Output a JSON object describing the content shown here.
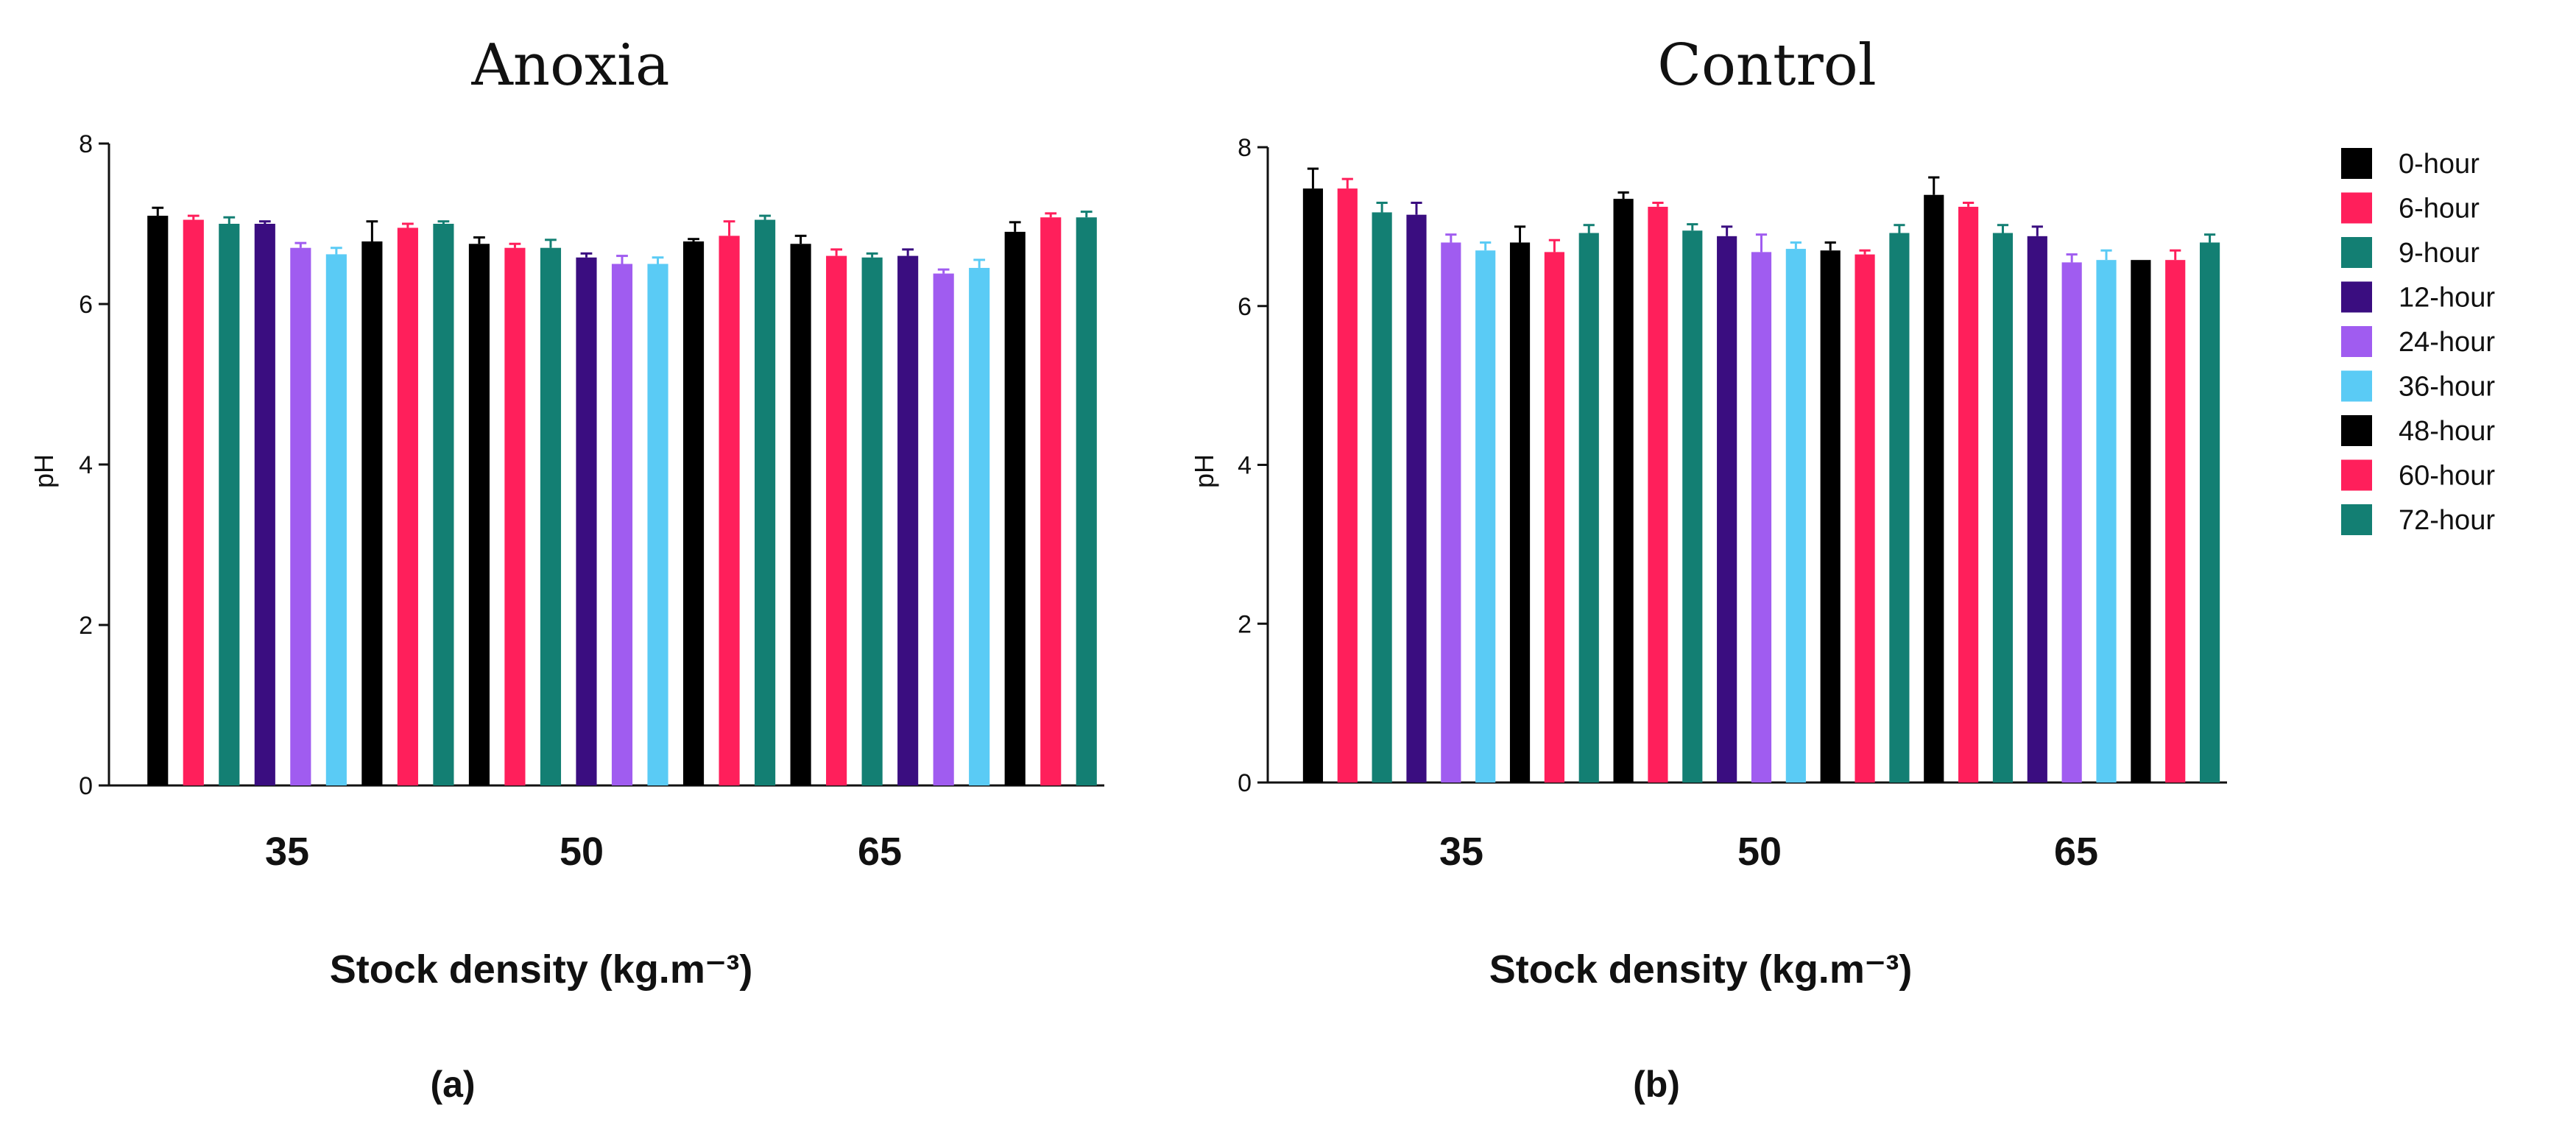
{
  "chart_data": [
    {
      "type": "bar",
      "title": "Anoxia",
      "ylabel": "pH",
      "xlabel": "Stock density (kg.m⁻³)",
      "panel_label": "(a)",
      "ylim": [
        0,
        8
      ],
      "yticks": [
        "0",
        "2",
        "4",
        "6",
        "8"
      ],
      "categories": [
        "35",
        "50",
        "65"
      ],
      "series": [
        {
          "name": "0-hour",
          "values": [
            7.1,
            6.75,
            6.75
          ],
          "errors": [
            0.1,
            0.08,
            0.1
          ]
        },
        {
          "name": "6-hour",
          "values": [
            7.05,
            6.7,
            6.6
          ],
          "errors": [
            0.05,
            0.05,
            0.08
          ]
        },
        {
          "name": "9-hour",
          "values": [
            7.0,
            6.7,
            6.58
          ],
          "errors": [
            0.08,
            0.1,
            0.05
          ]
        },
        {
          "name": "12-hour",
          "values": [
            7.0,
            6.58,
            6.6
          ],
          "errors": [
            0.03,
            0.05,
            0.08
          ]
        },
        {
          "name": "24-hour",
          "values": [
            6.7,
            6.5,
            6.38
          ],
          "errors": [
            0.06,
            0.1,
            0.05
          ]
        },
        {
          "name": "36-hour",
          "values": [
            6.62,
            6.5,
            6.45
          ],
          "errors": [
            0.08,
            0.08,
            0.1
          ]
        },
        {
          "name": "48-hour",
          "values": [
            6.78,
            6.78,
            6.9
          ],
          "errors": [
            0.25,
            0.03,
            0.12
          ]
        },
        {
          "name": "60-hour",
          "values": [
            6.95,
            6.85,
            7.08
          ],
          "errors": [
            0.05,
            0.18,
            0.05
          ]
        },
        {
          "name": "72-hour",
          "values": [
            7.0,
            7.05,
            7.08
          ],
          "errors": [
            0.03,
            0.05,
            0.07
          ]
        }
      ]
    },
    {
      "type": "bar",
      "title": "Control",
      "ylabel": "pH",
      "xlabel": "Stock density (kg.m⁻³)",
      "panel_label": "(b)",
      "ylim": [
        0,
        8
      ],
      "yticks": [
        "0",
        "2",
        "4",
        "6",
        "8"
      ],
      "categories": [
        "35",
        "50",
        "65"
      ],
      "series": [
        {
          "name": "0-hour",
          "values": [
            7.48,
            7.35,
            7.4
          ],
          "errors": [
            0.25,
            0.08,
            0.22
          ]
        },
        {
          "name": "6-hour",
          "values": [
            7.48,
            7.25,
            7.25
          ],
          "errors": [
            0.12,
            0.05,
            0.05
          ]
        },
        {
          "name": "9-hour",
          "values": [
            7.18,
            6.95,
            6.92
          ],
          "errors": [
            0.12,
            0.08,
            0.1
          ]
        },
        {
          "name": "12-hour",
          "values": [
            7.15,
            6.88,
            6.88
          ],
          "errors": [
            0.15,
            0.12,
            0.12
          ]
        },
        {
          "name": "24-hour",
          "values": [
            6.8,
            6.68,
            6.55
          ],
          "errors": [
            0.1,
            0.22,
            0.1
          ]
        },
        {
          "name": "36-hour",
          "values": [
            6.7,
            6.72,
            6.58
          ],
          "errors": [
            0.1,
            0.08,
            0.12
          ]
        },
        {
          "name": "48-hour",
          "values": [
            6.8,
            6.7,
            6.58
          ],
          "errors": [
            0.2,
            0.1,
            0.0
          ]
        },
        {
          "name": "60-hour",
          "values": [
            6.68,
            6.65,
            6.58
          ],
          "errors": [
            0.15,
            0.05,
            0.12
          ]
        },
        {
          "name": "72-hour",
          "values": [
            6.92,
            6.92,
            6.8
          ],
          "errors": [
            0.1,
            0.1,
            0.1
          ]
        }
      ]
    }
  ],
  "legend": {
    "position": "right",
    "entries": [
      {
        "label": "0-hour",
        "color": "#000000"
      },
      {
        "label": "6-hour",
        "color": "#FF1F5B"
      },
      {
        "label": "9-hour",
        "color": "#137F73"
      },
      {
        "label": "12-hour",
        "color": "#3A0D80"
      },
      {
        "label": "24-hour",
        "color": "#A05CF0"
      },
      {
        "label": "36-hour",
        "color": "#5ACBF5"
      },
      {
        "label": "48-hour",
        "color": "#000000"
      },
      {
        "label": "60-hour",
        "color": "#FF1F5B"
      },
      {
        "label": "72-hour",
        "color": "#137F73"
      }
    ]
  }
}
